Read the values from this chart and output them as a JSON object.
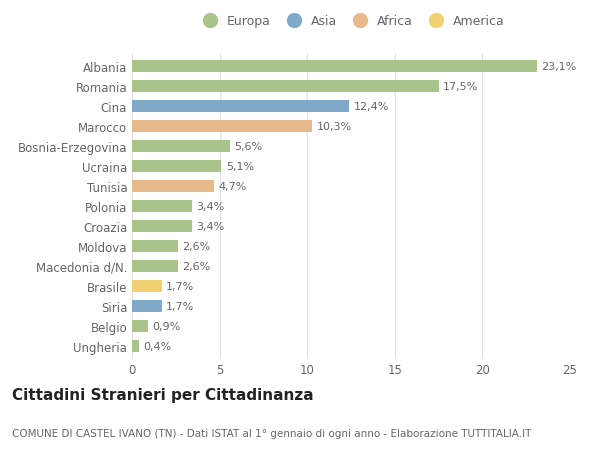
{
  "countries": [
    "Albania",
    "Romania",
    "Cina",
    "Marocco",
    "Bosnia-Erzegovina",
    "Ucraina",
    "Tunisia",
    "Polonia",
    "Croazia",
    "Moldova",
    "Macedonia d/N.",
    "Brasile",
    "Siria",
    "Belgio",
    "Ungheria"
  ],
  "values": [
    23.1,
    17.5,
    12.4,
    10.3,
    5.6,
    5.1,
    4.7,
    3.4,
    3.4,
    2.6,
    2.6,
    1.7,
    1.7,
    0.9,
    0.4
  ],
  "labels": [
    "23,1%",
    "17,5%",
    "12,4%",
    "10,3%",
    "5,6%",
    "5,1%",
    "4,7%",
    "3,4%",
    "3,4%",
    "2,6%",
    "2,6%",
    "1,7%",
    "1,7%",
    "0,9%",
    "0,4%"
  ],
  "continents": [
    "Europa",
    "Europa",
    "Asia",
    "Africa",
    "Europa",
    "Europa",
    "Africa",
    "Europa",
    "Europa",
    "Europa",
    "Europa",
    "America",
    "Asia",
    "Europa",
    "Europa"
  ],
  "colors": {
    "Europa": "#a8c48a",
    "Asia": "#7fa8c9",
    "Africa": "#e8b98a",
    "America": "#f0d070"
  },
  "legend_labels": [
    "Europa",
    "Asia",
    "Africa",
    "America"
  ],
  "legend_colors": [
    "#a8c48a",
    "#7fa8c9",
    "#e8b98a",
    "#f0d070"
  ],
  "title": "Cittadini Stranieri per Cittadinanza",
  "subtitle": "COMUNE DI CASTEL IVANO (TN) - Dati ISTAT al 1° gennaio di ogni anno - Elaborazione TUTTITALIA.IT",
  "xlim": [
    0,
    25
  ],
  "xticks": [
    0,
    5,
    10,
    15,
    20,
    25
  ],
  "background_color": "#ffffff",
  "grid_color": "#e0e0e0",
  "bar_height": 0.62,
  "label_fontsize": 8,
  "tick_fontsize": 8.5,
  "title_fontsize": 11,
  "subtitle_fontsize": 7.5
}
